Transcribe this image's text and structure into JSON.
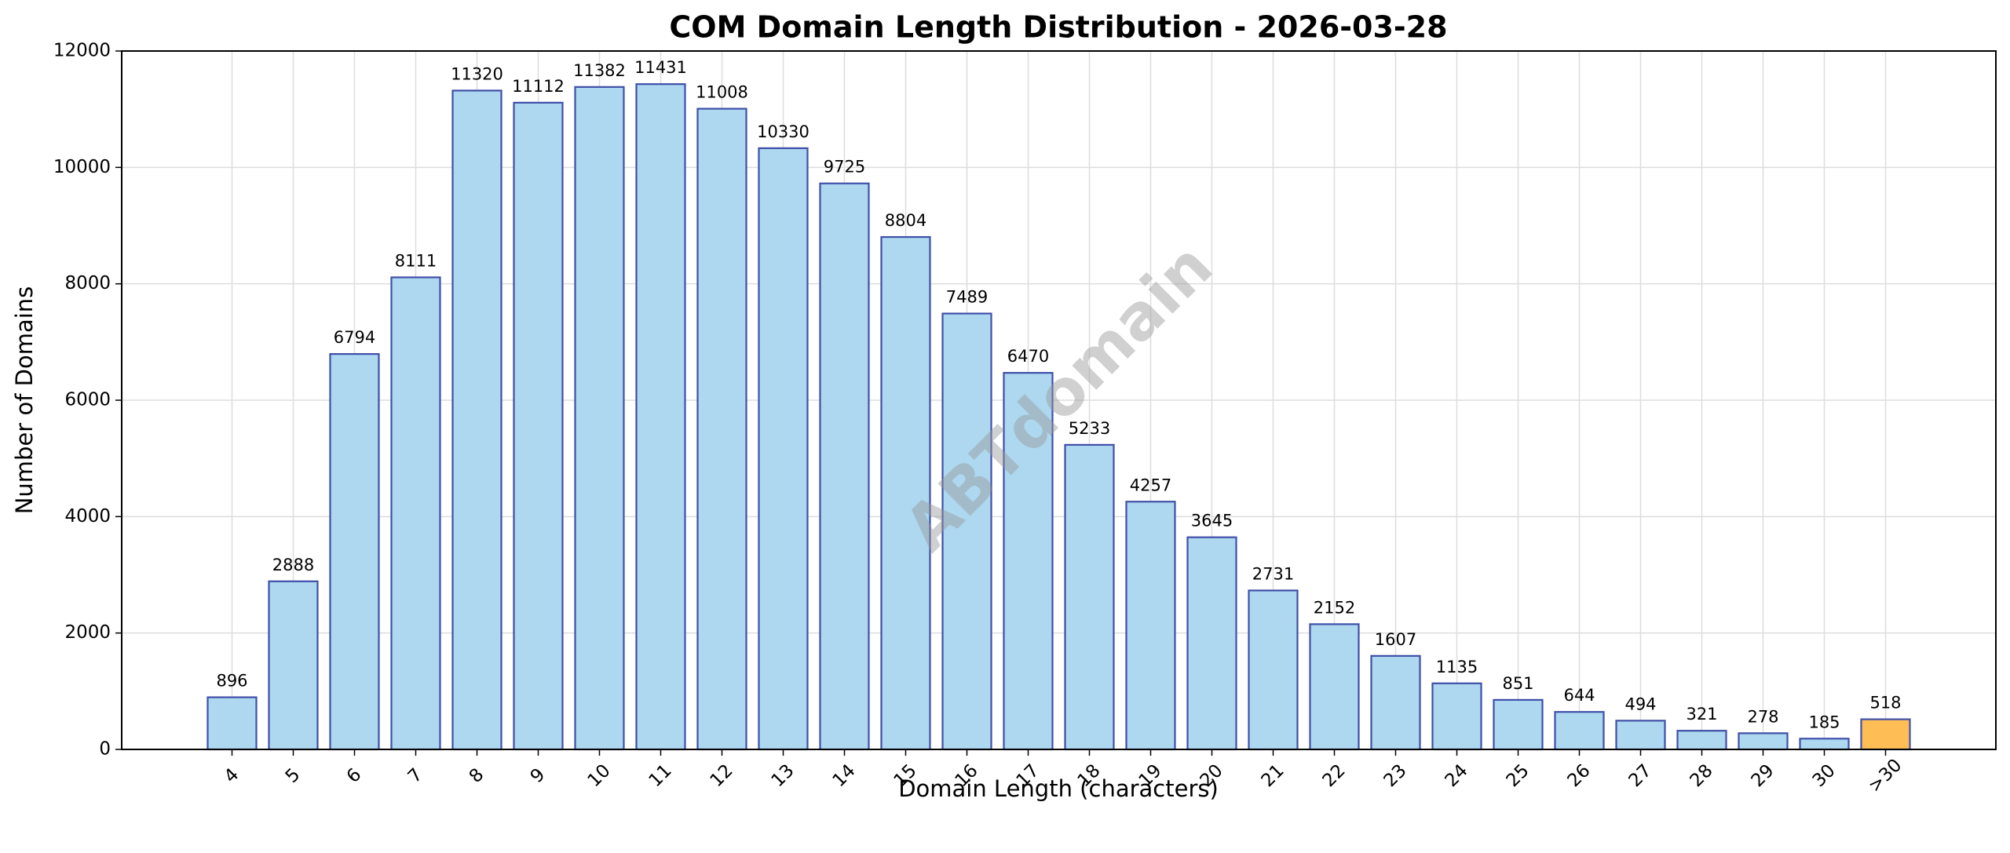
{
  "chart_data": {
    "type": "bar",
    "title": "COM Domain Length Distribution - 2026-03-28",
    "xlabel": "Domain Length (characters)",
    "ylabel": "Number of Domains",
    "watermark": "ABTdomain",
    "categories": [
      "4",
      "5",
      "6",
      "7",
      "8",
      "9",
      "10",
      "11",
      "12",
      "13",
      "14",
      "15",
      "16",
      "17",
      "18",
      "19",
      "20",
      "21",
      "22",
      "23",
      "24",
      "25",
      "26",
      "27",
      "28",
      "29",
      "30",
      ">30"
    ],
    "values": [
      896,
      2888,
      6794,
      8111,
      11320,
      11112,
      11382,
      11431,
      11008,
      10330,
      9725,
      8804,
      7489,
      6470,
      5233,
      4257,
      3645,
      2731,
      2152,
      1607,
      1135,
      851,
      644,
      494,
      321,
      278,
      185,
      518
    ],
    "colors": [
      "#add8ef",
      "#add8ef",
      "#add8ef",
      "#add8ef",
      "#add8ef",
      "#add8ef",
      "#add8ef",
      "#add8ef",
      "#add8ef",
      "#add8ef",
      "#add8ef",
      "#add8ef",
      "#add8ef",
      "#add8ef",
      "#add8ef",
      "#add8ef",
      "#add8ef",
      "#add8ef",
      "#add8ef",
      "#add8ef",
      "#add8ef",
      "#add8ef",
      "#add8ef",
      "#add8ef",
      "#add8ef",
      "#add8ef",
      "#add8ef",
      "#ffbe55"
    ],
    "edge_color": "#3f4fa8",
    "ylim": [
      0,
      12000
    ],
    "yticks": [
      0,
      2000,
      4000,
      6000,
      8000,
      10000,
      12000
    ],
    "grid": true
  }
}
